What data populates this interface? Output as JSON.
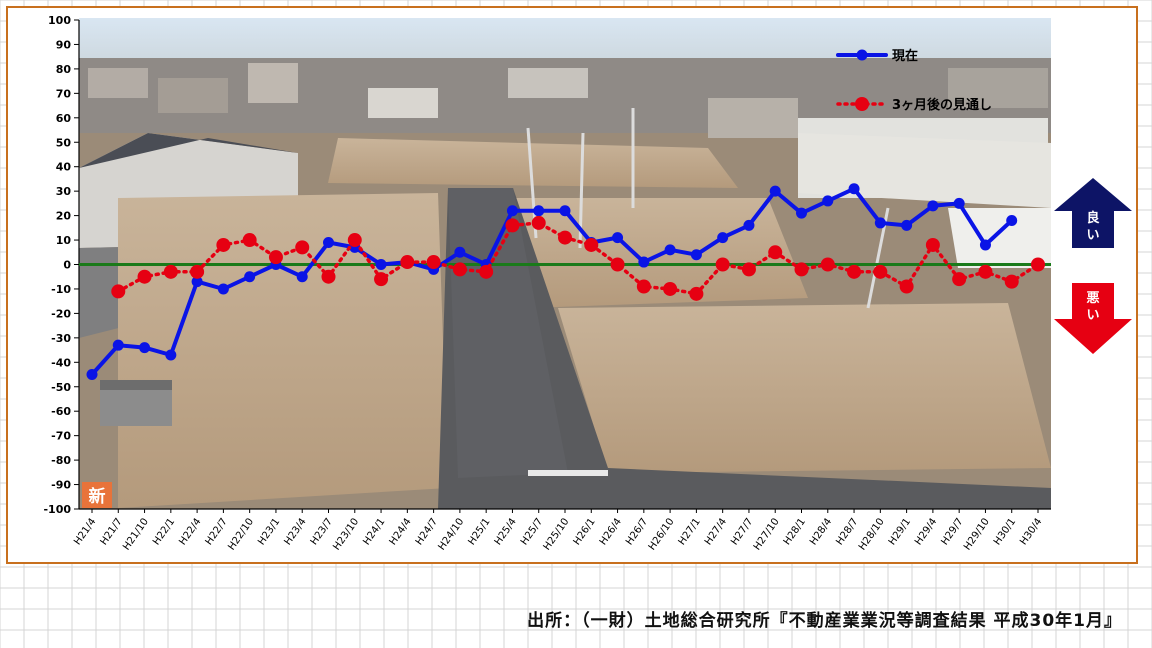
{
  "source_text": "出所：（一財）土地総合研究所『不動産業業況等調査結果 平成30年1月』",
  "badge_text": "新",
  "good_label": "良い",
  "bad_label": "悪い",
  "colors": {
    "current": "#0a14e6",
    "forecast": "#e60012",
    "zero_line": "#1a7a1a",
    "frame": "#c8701e",
    "good_arrow": "#0d1466",
    "bad_arrow": "#e60012"
  },
  "chart_data": {
    "type": "line",
    "title": "",
    "xlabel": "",
    "ylabel": "",
    "ylim": [
      -100,
      100
    ],
    "yticks": [
      100,
      90,
      80,
      70,
      60,
      50,
      40,
      30,
      20,
      10,
      0,
      -10,
      -20,
      -30,
      -40,
      -50,
      -60,
      -70,
      -80,
      -90,
      -100
    ],
    "categories": [
      "H21/4",
      "H21/7",
      "H21/10",
      "H22/1",
      "H22/4",
      "H22/7",
      "H22/10",
      "H23/1",
      "H23/4",
      "H23/7",
      "H23/10",
      "H24/1",
      "H24/4",
      "H24/7",
      "H24/10",
      "H25/1",
      "H25/4",
      "H25/7",
      "H25/10",
      "H26/1",
      "H26/4",
      "H26/7",
      "H26/10",
      "H27/1",
      "H27/4",
      "H27/7",
      "H27/10",
      "H28/1",
      "H28/4",
      "H28/7",
      "H28/10",
      "H29/1",
      "H29/4",
      "H29/7",
      "H29/10",
      "H30/1",
      "H30/4"
    ],
    "legend_position": "top-right",
    "series": [
      {
        "name": "現在",
        "style": "solid-line-dot-marker",
        "values": [
          -45,
          -33,
          -34,
          -37,
          -7,
          -10,
          -5,
          0,
          -5,
          9,
          7,
          0,
          1,
          -2,
          5,
          0,
          22,
          22,
          22,
          9,
          11,
          1,
          6,
          4,
          11,
          16,
          30,
          21,
          26,
          31,
          17,
          16,
          24,
          25,
          8,
          18,
          null
        ]
      },
      {
        "name": "3ヶ月後の見通し",
        "style": "dotted-line-circle-marker",
        "values": [
          null,
          -11,
          -5,
          -3,
          -3,
          8,
          10,
          3,
          7,
          -5,
          10,
          -6,
          1,
          1,
          -2,
          -3,
          16,
          17,
          11,
          8,
          0,
          -9,
          -10,
          -12,
          0,
          -2,
          5,
          -2,
          0,
          -3,
          -3,
          -9,
          8,
          -6,
          -3,
          -7,
          0
        ]
      }
    ]
  }
}
